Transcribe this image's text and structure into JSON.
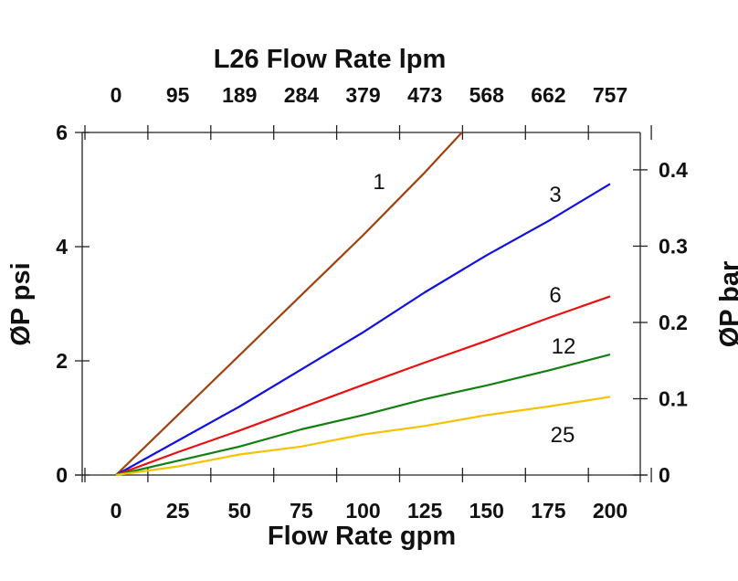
{
  "chart_data": {
    "type": "line",
    "title": "L26 Flow Rate lpm",
    "xlabel": "Flow Rate gpm",
    "ylabel": "ØP psi",
    "y2label": "ØP bar",
    "xlim": [
      0,
      200
    ],
    "ylim": [
      0,
      6
    ],
    "y2lim": [
      0,
      0.449
    ],
    "grid": false,
    "x_ticks": [
      "0",
      "25",
      "50",
      "75",
      "100",
      "125",
      "150",
      "175",
      "200"
    ],
    "x2_ticks": [
      "0",
      "95",
      "189",
      "284",
      "379",
      "473",
      "568",
      "662",
      "757"
    ],
    "y_ticks": [
      "0",
      "2",
      "4",
      "6"
    ],
    "y2_ticks": [
      "0",
      "0.1",
      "0.2",
      "0.3",
      "0.4"
    ],
    "series": [
      {
        "name": "1",
        "color": "#a0410f",
        "x": [
          0,
          25,
          50,
          75,
          100,
          125,
          140
        ],
        "y": [
          0,
          1.05,
          2.1,
          3.15,
          4.2,
          5.3,
          6.0
        ]
      },
      {
        "name": "3",
        "color": "#1010e0",
        "x": [
          0,
          25,
          50,
          75,
          100,
          125,
          150,
          175,
          200
        ],
        "y": [
          0,
          0.6,
          1.2,
          1.85,
          2.5,
          3.2,
          3.85,
          4.45,
          5.1
        ]
      },
      {
        "name": "6",
        "color": "#e81010",
        "x": [
          0,
          25,
          50,
          75,
          100,
          125,
          150,
          175,
          200
        ],
        "y": [
          0,
          0.4,
          0.78,
          1.18,
          1.58,
          1.97,
          2.35,
          2.75,
          3.13
        ]
      },
      {
        "name": "12",
        "color": "#118011",
        "x": [
          0,
          25,
          50,
          75,
          100,
          125,
          150,
          175,
          200
        ],
        "y": [
          0,
          0.25,
          0.5,
          0.8,
          1.05,
          1.33,
          1.57,
          1.83,
          2.11
        ]
      },
      {
        "name": "25",
        "color": "#f5c200",
        "x": [
          0,
          25,
          50,
          75,
          100,
          125,
          150,
          175,
          200
        ],
        "y": [
          0,
          0.15,
          0.36,
          0.5,
          0.71,
          0.86,
          1.05,
          1.2,
          1.37
        ]
      }
    ]
  }
}
